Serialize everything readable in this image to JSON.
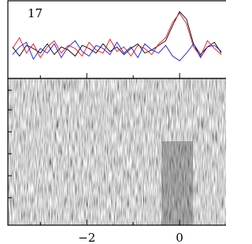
{
  "chart_data": {
    "type": "line",
    "panel_label": "17",
    "x": [
      -3.6,
      -3.45,
      -3.3,
      -3.15,
      -3.0,
      -2.85,
      -2.7,
      -2.55,
      -2.4,
      -2.25,
      -2.1,
      -1.95,
      -1.8,
      -1.65,
      -1.5,
      -1.35,
      -1.2,
      -1.05,
      -0.9,
      -0.75,
      -0.6,
      -0.45,
      -0.3,
      -0.15,
      0,
      0.15,
      0.3,
      0.45,
      0.6,
      0.75,
      0.9
    ],
    "series": [
      {
        "color": "#000000",
        "values": [
          0.1,
          -0.2,
          0.15,
          0.05,
          -0.1,
          0.2,
          -0.15,
          0.1,
          0.0,
          -0.2,
          0.15,
          0.05,
          -0.1,
          0.2,
          -0.05,
          0.1,
          -0.15,
          0.05,
          0.2,
          -0.1,
          0.0,
          0.15,
          0.3,
          0.8,
          1.25,
          1.0,
          0.2,
          -0.15,
          0.1,
          0.25,
          -0.1
        ]
      },
      {
        "color": "#e8141c",
        "values": [
          0.05,
          0.4,
          -0.1,
          0.2,
          -0.25,
          0.1,
          0.3,
          -0.1,
          0.15,
          0.05,
          -0.2,
          0.25,
          0.0,
          -0.1,
          0.35,
          -0.05,
          0.1,
          -0.2,
          0.15,
          0.05,
          -0.15,
          0.2,
          0.4,
          0.9,
          1.2,
          0.85,
          0.1,
          -0.2,
          0.3,
          0.05,
          -0.15
        ]
      },
      {
        "color": "#1a1adc",
        "values": [
          -0.15,
          0.1,
          0.25,
          -0.3,
          0.05,
          -0.1,
          0.2,
          -0.25,
          0.1,
          0.3,
          -0.05,
          -0.2,
          0.15,
          0.05,
          -0.15,
          0.25,
          -0.1,
          0.1,
          -0.25,
          0.2,
          0.0,
          -0.1,
          0.15,
          -0.2,
          -0.35,
          -0.1,
          0.2,
          -0.25,
          0.1,
          0.15,
          -0.05
        ]
      }
    ],
    "xlim": [
      -3.7,
      1.0
    ],
    "ylim": [
      -0.8,
      1.5
    ],
    "xticks": [
      {
        "value": -2,
        "label": "−2"
      },
      0
    ],
    "x_minor_ticks": [
      -3,
      -1
    ]
  }
}
